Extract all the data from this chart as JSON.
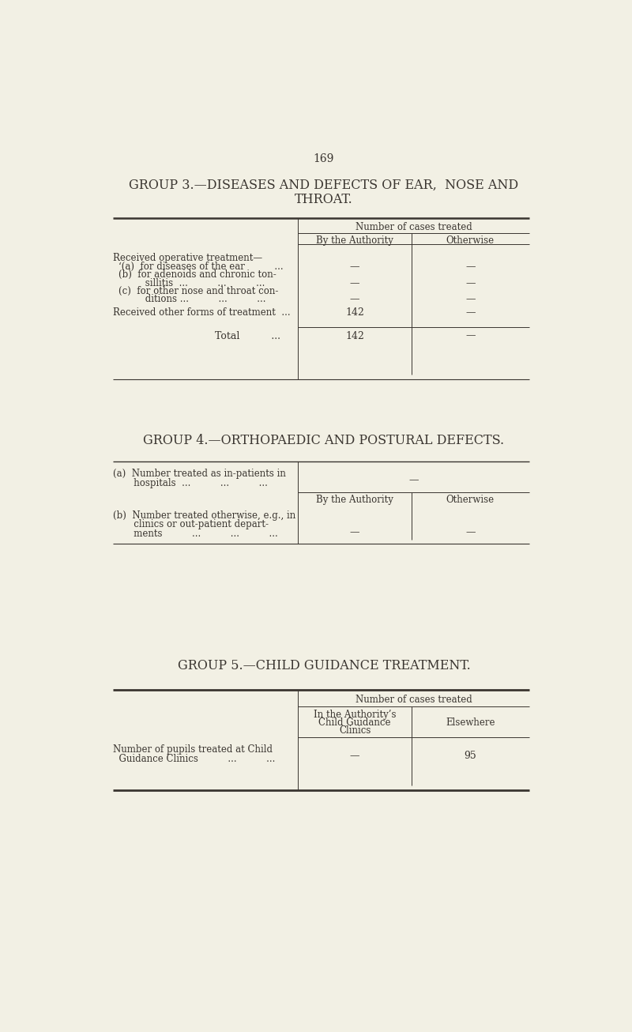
{
  "bg_color": "#f2f0e4",
  "text_color": "#3a3530",
  "page_number": "169",
  "group3_title_line1": "GROUP 3.—DISEASES AND DEFECTS OF EAR,  NOSE AND",
  "group3_title_line2": "THROAT.",
  "group3_col_header": "Number of cases treated",
  "group3_col1": "By the Authority",
  "group3_col2": "Otherwise",
  "group3_rows": [
    {
      "label": "Received operative treatment—",
      "indent": 0,
      "col1": "",
      "col2": ""
    },
    {
      "label": "‘(a)  for diseases of the ear          ...",
      "indent": 10,
      "col1": "—",
      "col2": "—"
    },
    {
      "label": "(b)  for adenoids and chronic ton-",
      "indent": 10,
      "col1": "",
      "col2": ""
    },
    {
      "label": "         sillitis  ...          ...          ...",
      "indent": 10,
      "col1": "—",
      "col2": "—"
    },
    {
      "label": "(c)  for other nose and throat con-",
      "indent": 10,
      "col1": "",
      "col2": ""
    },
    {
      "label": "         ditions ...          ...          ...",
      "indent": 10,
      "col1": "—",
      "col2": "—"
    },
    {
      "label": "Received other forms of treatment  ...",
      "indent": 0,
      "col1": "142",
      "col2": "—"
    },
    {
      "label": "Total          ...",
      "indent": 0,
      "col1": "142",
      "col2": "—",
      "total": true
    }
  ],
  "group4_title": "GROUP 4.—ORTHOPAEDIC AND POSTURAL DEFECTS.",
  "group4_row_a_line1": "(a)  Number treated as in-patients in",
  "group4_row_a_line2": "       hospitals  ...          ...          ...",
  "group4_row_a_val": "—",
  "group4_col1": "By the Authority",
  "group4_col2": "Otherwise",
  "group4_row_b_line1": "(b)  Number treated otherwise, e.g., in",
  "group4_row_b_line2": "       clinics or out-patient depart-",
  "group4_row_b_line3": "       ments          ...          ...          ...",
  "group4_row_b_col1": "—",
  "group4_row_b_col2": "—",
  "group5_title": "GROUP 5.—CHILD GUIDANCE TREATMENT.",
  "group5_col_header": "Number of cases treated",
  "group5_col1_line1": "In the Authority’s",
  "group5_col1_line2": "Child Guidance",
  "group5_col1_line3": "Clinics",
  "group5_col2": "Elsewhere",
  "group5_row_line1": "Number of pupils treated at Child",
  "group5_row_line2": "  Guidance Clinics          ...          ...",
  "group5_row_col1": "—",
  "group5_row_col2": "95"
}
